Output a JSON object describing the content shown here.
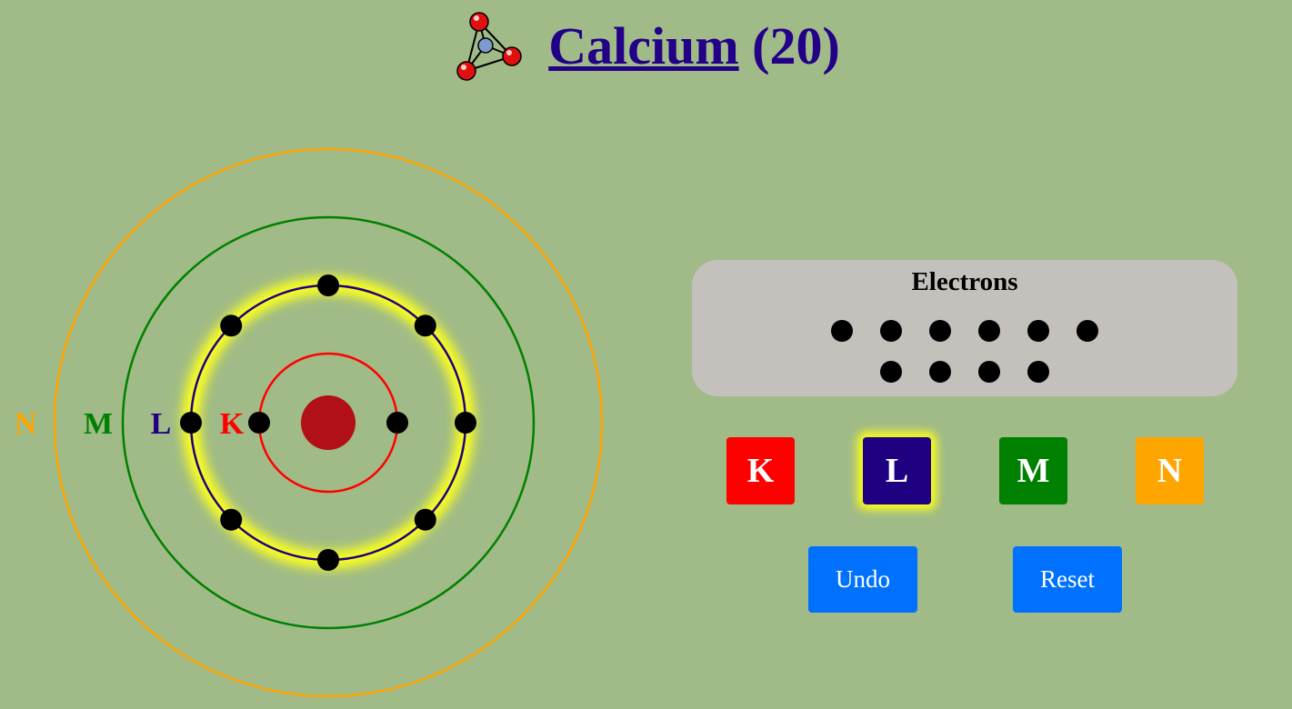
{
  "header": {
    "element_name": "Calcium",
    "atomic_number_label": "(20)",
    "logo_icon": "molecule-icon"
  },
  "atom": {
    "nucleus_color": "#b11116",
    "shells": [
      {
        "label": "K",
        "color": "#ff0000",
        "electrons": 2,
        "selected": false
      },
      {
        "label": "L",
        "color": "#1f0080",
        "electrons": 8,
        "selected": true
      },
      {
        "label": "M",
        "color": "#008000",
        "electrons": 0,
        "selected": false
      },
      {
        "label": "N",
        "color": "#ffa500",
        "electrons": 0,
        "selected": false
      }
    ],
    "highlight_color": "#fbff1a",
    "electron_color": "#000000"
  },
  "electron_pool": {
    "title": "Electrons",
    "remaining": 10,
    "rows": [
      6,
      4
    ]
  },
  "shell_buttons": [
    {
      "label": "K",
      "color": "#ff0000"
    },
    {
      "label": "L",
      "color": "#1f0080"
    },
    {
      "label": "M",
      "color": "#008000"
    },
    {
      "label": "N",
      "color": "#ffa500"
    }
  ],
  "actions": {
    "undo_label": "Undo",
    "reset_label": "Reset"
  }
}
